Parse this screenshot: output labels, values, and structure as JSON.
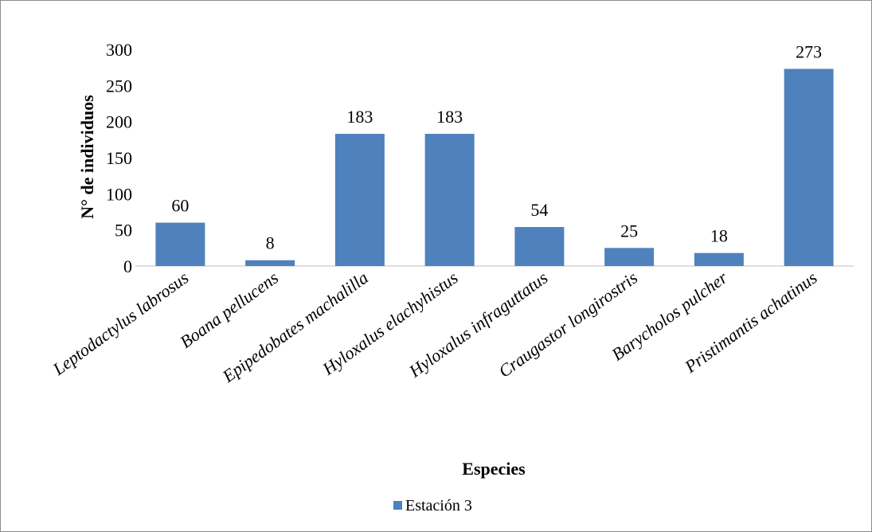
{
  "chart_data": {
    "type": "bar",
    "title": "",
    "xlabel": "Especies",
    "ylabel": "N° de individuos",
    "ylim": [
      0,
      300
    ],
    "yticks": [
      "0",
      "50",
      "100",
      "150",
      "200",
      "250",
      "300"
    ],
    "categories": [
      "Leptodactylus labrosus",
      "Boana pellucens",
      "Epipedobates machalilla",
      "Hyloxalus elachyhistus",
      "Hyloxalus infraguttatus",
      "Craugastor longirostris",
      "Barycholos pulcher",
      "Pristimantis achatinus"
    ],
    "series": [
      {
        "name": "Estación 3",
        "values": [
          60,
          8,
          183,
          183,
          54,
          25,
          18,
          273
        ],
        "color": "#4f81bd"
      }
    ],
    "data_labels": [
      "60",
      "8",
      "183",
      "183",
      "54",
      "25",
      "18",
      "273"
    ],
    "grid": false,
    "legend": {
      "position": "bottom",
      "label": "Estación 3"
    }
  }
}
